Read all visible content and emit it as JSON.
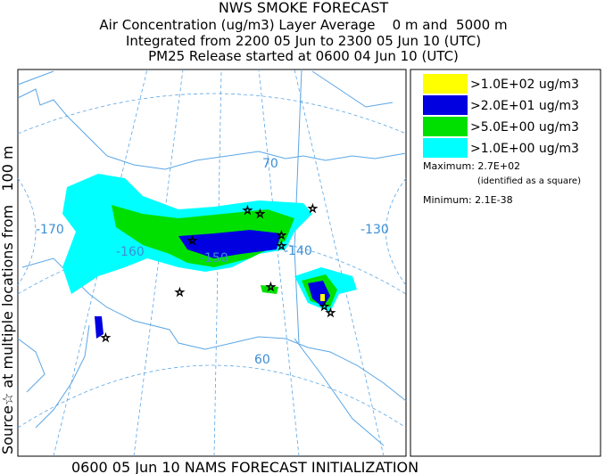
{
  "header": {
    "title": "NWS SMOKE FORECAST",
    "lines": [
      "Air Concentration (ug/m3) Layer Average    0 m and  5000 m",
      "Integrated from 2200 05 Jun to 2300 05 Jun 10 (UTC)",
      "PM25 Release started at 0600 04 Jun 10 (UTC)"
    ]
  },
  "side_label": "Source☆ at multiple locations from   100 m",
  "map": {
    "labels": [
      "-170",
      "-160",
      "-150",
      "-140",
      "-130",
      "70",
      "60"
    ]
  },
  "legend": {
    "items": [
      {
        "label": ">1.0E+02 ug/m3",
        "color": "#ffff00"
      },
      {
        "label": ">2.0E+01 ug/m3",
        "color": "#0000e0"
      },
      {
        "label": ">5.0E+00 ug/m3",
        "color": "#00e000"
      },
      {
        "label": ">1.0E+00 ug/m3",
        "color": "#00ffff"
      }
    ],
    "maximum": "Maximum: 2.7E+02",
    "max_note": "(identified as a square)",
    "minimum": "Minimum: 2.1E-38"
  },
  "footer": "0600 05 Jun 10 NAMS FORECAST INITIALIZATION"
}
